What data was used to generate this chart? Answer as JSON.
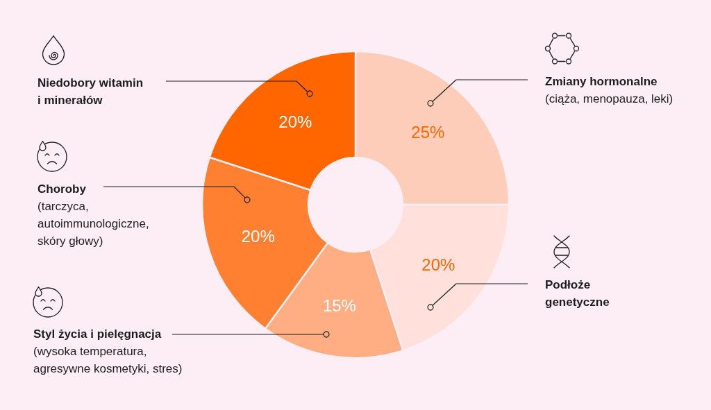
{
  "chart_data": {
    "type": "donut",
    "categories": [
      "Zmiany hormonalne",
      "Podłoże\ngenetyczne",
      "Styl życia i pielęgnacja",
      "Choroby",
      "Niedobory witamin\ni minerałów"
    ],
    "values": [
      25,
      20,
      15,
      20,
      20
    ],
    "colors": [
      "#fecdb9",
      "#ffe0da",
      "#ffad82",
      "#ff8030",
      "#ff6600"
    ],
    "value_labels": [
      "25%",
      "20%",
      "15%",
      "20%",
      "20%"
    ],
    "annotations": [
      {
        "text": "(ciąża, menopauza, leki)",
        "x": "Zmiany hormonalne"
      },
      {
        "text": "(wysoka temperatura,\nagresywne kosmetyki, stres)",
        "x": "Styl życia i pielęgnacja"
      },
      {
        "text": "(tarczyca,\nautoimmunologiczne,\nskóry głowy)",
        "x": "Choroby"
      }
    ]
  }
}
